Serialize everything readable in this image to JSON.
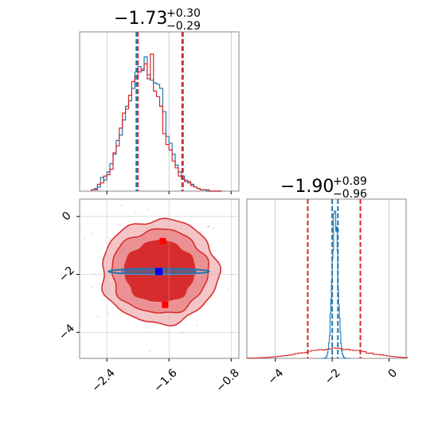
{
  "colors": {
    "blue": "#1f77b4",
    "red": "#d62728",
    "red_fill_light": "#f4c2c3",
    "red_fill_mid": "#ec8f91",
    "red_fill_dark": "#d62728",
    "grid": "#b0b0b0"
  },
  "chart_data": [
    {
      "type": "area",
      "panel": "top-left marginal histogram",
      "title_value": "−1.73",
      "title_plus": "+0.30",
      "title_minus": "−0.29",
      "xlim": [
        -2.75,
        -0.7
      ],
      "grid": true,
      "bins": [
        -2.6,
        -2.56,
        -2.52,
        -2.48,
        -2.44,
        -2.4,
        -2.36,
        -2.32,
        -2.28,
        -2.24,
        -2.2,
        -2.16,
        -2.12,
        -2.08,
        -2.04,
        -2.0,
        -1.96,
        -1.92,
        -1.88,
        -1.84,
        -1.8,
        -1.76,
        -1.72,
        -1.68,
        -1.64,
        -1.6,
        -1.56,
        -1.52,
        -1.48,
        -1.44,
        -1.4,
        -1.36,
        -1.32,
        -1.28,
        -1.24,
        -1.2,
        -1.16,
        -1.12,
        -1.08,
        -1.04,
        -1.0,
        -0.96
      ],
      "series": [
        {
          "name": "",
          "color": "blue",
          "values": [
            0.01,
            0.02,
            0.03,
            0.1,
            0.08,
            0.14,
            0.2,
            0.27,
            0.37,
            0.41,
            0.52,
            0.62,
            0.66,
            0.75,
            0.87,
            0.91,
            0.88,
            0.98,
            0.85,
            0.81,
            0.79,
            0.78,
            0.75,
            0.58,
            0.4,
            0.35,
            0.27,
            0.19,
            0.14,
            0.11,
            0.08,
            0.06,
            0.05,
            0.03,
            0.02,
            0.01,
            0.01,
            0.0,
            0.0,
            0.0,
            0.0,
            0.0
          ],
          "quantiles": [
            -2.02,
            -1.42
          ]
        },
        {
          "name": "",
          "color": "red",
          "values": [
            0.01,
            0.01,
            0.05,
            0.06,
            0.11,
            0.12,
            0.16,
            0.28,
            0.33,
            0.46,
            0.57,
            0.6,
            0.7,
            0.8,
            0.84,
            0.87,
            0.89,
            0.93,
            0.82,
            1.0,
            0.73,
            0.69,
            0.62,
            0.42,
            0.34,
            0.3,
            0.22,
            0.17,
            0.11,
            0.09,
            0.07,
            0.07,
            0.04,
            0.03,
            0.02,
            0.01,
            0.01,
            0.01,
            0.0,
            0.0,
            0.0,
            0.0
          ],
          "quantiles": [
            -2.0,
            -1.43
          ]
        }
      ]
    },
    {
      "type": "scatter",
      "panel": "bottom-left 2D contour",
      "xlim": [
        -2.75,
        -0.7
      ],
      "ylim": [
        -4.9,
        0.6
      ],
      "xticks": [
        "−2.4",
        "−1.6",
        "−0.8"
      ],
      "yticks": [
        "0",
        "−2",
        "−4"
      ],
      "xtick_values": [
        -2.4,
        -1.6,
        -0.8
      ],
      "ytick_values": [
        0,
        -2,
        -4
      ],
      "grid": true,
      "red_center": [
        -1.72,
        -1.9
      ],
      "blue_center": [
        -1.73,
        -1.9
      ],
      "red_markers": [
        [
          -1.68,
          -0.85
        ],
        [
          -1.73,
          -1.9
        ],
        [
          -1.65,
          -3.05
        ]
      ],
      "blue_markers": [
        [
          -1.73,
          -1.9
        ]
      ],
      "red_contours": [
        {
          "level": "inner",
          "rx": 0.45,
          "ry": 1.05
        },
        {
          "level": "middle",
          "rx": 0.62,
          "ry": 1.45
        },
        {
          "level": "outer",
          "rx": 0.75,
          "ry": 1.8
        }
      ],
      "blue_contour": {
        "rx": 0.65,
        "ry": 0.1
      }
    },
    {
      "type": "area",
      "panel": "bottom-right marginal histogram",
      "title_value": "−1.90",
      "title_plus": "+0.89",
      "title_minus": "−0.96",
      "xlim": [
        -5.0,
        0.6
      ],
      "xticks": [
        "−4",
        "−2",
        "0"
      ],
      "xtick_values": [
        -4,
        -2,
        0
      ],
      "grid": true,
      "series": [
        {
          "name": "",
          "color": "blue",
          "center": -1.9,
          "width": 0.1,
          "quantiles": [
            -2.0,
            -1.8
          ]
        },
        {
          "name": "",
          "color": "red",
          "center": -1.9,
          "width": 0.93,
          "quantiles": [
            -2.86,
            -1.01
          ]
        }
      ]
    }
  ]
}
